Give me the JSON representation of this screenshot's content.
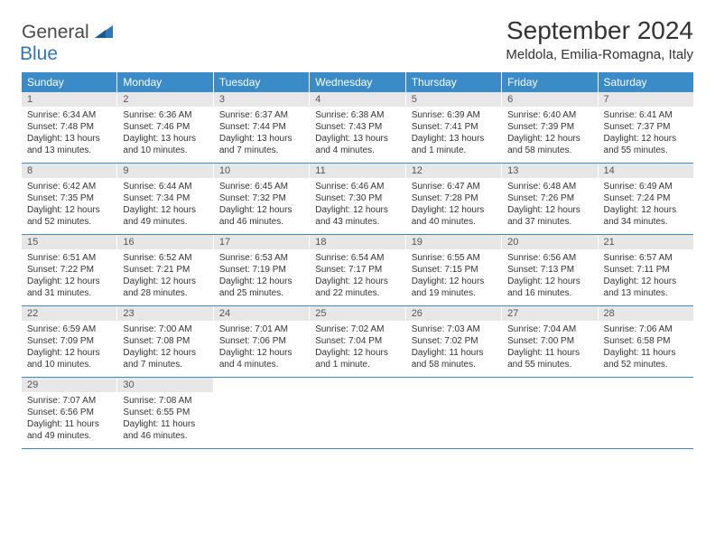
{
  "logo": {
    "text1": "General",
    "text2": "Blue",
    "color_general": "#4a4a4a",
    "color_blue": "#2f77bc"
  },
  "header": {
    "month_title": "September 2024",
    "location": "Meldola, Emilia-Romagna, Italy"
  },
  "calendar": {
    "header_bg": "#3b8bc9",
    "header_fg": "#ffffff",
    "date_bg": "#e7e7e7",
    "border_color": "#3b8bc9",
    "days": [
      "Sunday",
      "Monday",
      "Tuesday",
      "Wednesday",
      "Thursday",
      "Friday",
      "Saturday"
    ],
    "weeks": [
      [
        {
          "date": "1",
          "sunrise": "Sunrise: 6:34 AM",
          "sunset": "Sunset: 7:48 PM",
          "daylight": "Daylight: 13 hours and 13 minutes."
        },
        {
          "date": "2",
          "sunrise": "Sunrise: 6:36 AM",
          "sunset": "Sunset: 7:46 PM",
          "daylight": "Daylight: 13 hours and 10 minutes."
        },
        {
          "date": "3",
          "sunrise": "Sunrise: 6:37 AM",
          "sunset": "Sunset: 7:44 PM",
          "daylight": "Daylight: 13 hours and 7 minutes."
        },
        {
          "date": "4",
          "sunrise": "Sunrise: 6:38 AM",
          "sunset": "Sunset: 7:43 PM",
          "daylight": "Daylight: 13 hours and 4 minutes."
        },
        {
          "date": "5",
          "sunrise": "Sunrise: 6:39 AM",
          "sunset": "Sunset: 7:41 PM",
          "daylight": "Daylight: 13 hours and 1 minute."
        },
        {
          "date": "6",
          "sunrise": "Sunrise: 6:40 AM",
          "sunset": "Sunset: 7:39 PM",
          "daylight": "Daylight: 12 hours and 58 minutes."
        },
        {
          "date": "7",
          "sunrise": "Sunrise: 6:41 AM",
          "sunset": "Sunset: 7:37 PM",
          "daylight": "Daylight: 12 hours and 55 minutes."
        }
      ],
      [
        {
          "date": "8",
          "sunrise": "Sunrise: 6:42 AM",
          "sunset": "Sunset: 7:35 PM",
          "daylight": "Daylight: 12 hours and 52 minutes."
        },
        {
          "date": "9",
          "sunrise": "Sunrise: 6:44 AM",
          "sunset": "Sunset: 7:34 PM",
          "daylight": "Daylight: 12 hours and 49 minutes."
        },
        {
          "date": "10",
          "sunrise": "Sunrise: 6:45 AM",
          "sunset": "Sunset: 7:32 PM",
          "daylight": "Daylight: 12 hours and 46 minutes."
        },
        {
          "date": "11",
          "sunrise": "Sunrise: 6:46 AM",
          "sunset": "Sunset: 7:30 PM",
          "daylight": "Daylight: 12 hours and 43 minutes."
        },
        {
          "date": "12",
          "sunrise": "Sunrise: 6:47 AM",
          "sunset": "Sunset: 7:28 PM",
          "daylight": "Daylight: 12 hours and 40 minutes."
        },
        {
          "date": "13",
          "sunrise": "Sunrise: 6:48 AM",
          "sunset": "Sunset: 7:26 PM",
          "daylight": "Daylight: 12 hours and 37 minutes."
        },
        {
          "date": "14",
          "sunrise": "Sunrise: 6:49 AM",
          "sunset": "Sunset: 7:24 PM",
          "daylight": "Daylight: 12 hours and 34 minutes."
        }
      ],
      [
        {
          "date": "15",
          "sunrise": "Sunrise: 6:51 AM",
          "sunset": "Sunset: 7:22 PM",
          "daylight": "Daylight: 12 hours and 31 minutes."
        },
        {
          "date": "16",
          "sunrise": "Sunrise: 6:52 AM",
          "sunset": "Sunset: 7:21 PM",
          "daylight": "Daylight: 12 hours and 28 minutes."
        },
        {
          "date": "17",
          "sunrise": "Sunrise: 6:53 AM",
          "sunset": "Sunset: 7:19 PM",
          "daylight": "Daylight: 12 hours and 25 minutes."
        },
        {
          "date": "18",
          "sunrise": "Sunrise: 6:54 AM",
          "sunset": "Sunset: 7:17 PM",
          "daylight": "Daylight: 12 hours and 22 minutes."
        },
        {
          "date": "19",
          "sunrise": "Sunrise: 6:55 AM",
          "sunset": "Sunset: 7:15 PM",
          "daylight": "Daylight: 12 hours and 19 minutes."
        },
        {
          "date": "20",
          "sunrise": "Sunrise: 6:56 AM",
          "sunset": "Sunset: 7:13 PM",
          "daylight": "Daylight: 12 hours and 16 minutes."
        },
        {
          "date": "21",
          "sunrise": "Sunrise: 6:57 AM",
          "sunset": "Sunset: 7:11 PM",
          "daylight": "Daylight: 12 hours and 13 minutes."
        }
      ],
      [
        {
          "date": "22",
          "sunrise": "Sunrise: 6:59 AM",
          "sunset": "Sunset: 7:09 PM",
          "daylight": "Daylight: 12 hours and 10 minutes."
        },
        {
          "date": "23",
          "sunrise": "Sunrise: 7:00 AM",
          "sunset": "Sunset: 7:08 PM",
          "daylight": "Daylight: 12 hours and 7 minutes."
        },
        {
          "date": "24",
          "sunrise": "Sunrise: 7:01 AM",
          "sunset": "Sunset: 7:06 PM",
          "daylight": "Daylight: 12 hours and 4 minutes."
        },
        {
          "date": "25",
          "sunrise": "Sunrise: 7:02 AM",
          "sunset": "Sunset: 7:04 PM",
          "daylight": "Daylight: 12 hours and 1 minute."
        },
        {
          "date": "26",
          "sunrise": "Sunrise: 7:03 AM",
          "sunset": "Sunset: 7:02 PM",
          "daylight": "Daylight: 11 hours and 58 minutes."
        },
        {
          "date": "27",
          "sunrise": "Sunrise: 7:04 AM",
          "sunset": "Sunset: 7:00 PM",
          "daylight": "Daylight: 11 hours and 55 minutes."
        },
        {
          "date": "28",
          "sunrise": "Sunrise: 7:06 AM",
          "sunset": "Sunset: 6:58 PM",
          "daylight": "Daylight: 11 hours and 52 minutes."
        }
      ],
      [
        {
          "date": "29",
          "sunrise": "Sunrise: 7:07 AM",
          "sunset": "Sunset: 6:56 PM",
          "daylight": "Daylight: 11 hours and 49 minutes."
        },
        {
          "date": "30",
          "sunrise": "Sunrise: 7:08 AM",
          "sunset": "Sunset: 6:55 PM",
          "daylight": "Daylight: 11 hours and 46 minutes."
        },
        null,
        null,
        null,
        null,
        null
      ]
    ]
  }
}
